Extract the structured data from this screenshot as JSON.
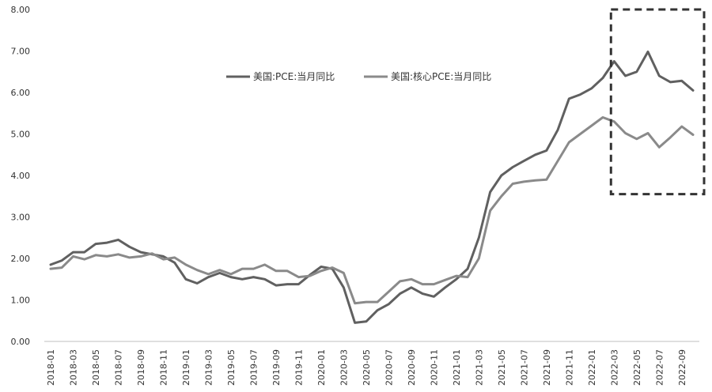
{
  "chart_data": {
    "type": "line",
    "x": [
      "2018-01",
      "2018-02",
      "2018-03",
      "2018-04",
      "2018-05",
      "2018-06",
      "2018-07",
      "2018-08",
      "2018-09",
      "2018-10",
      "2018-11",
      "2018-12",
      "2019-01",
      "2019-02",
      "2019-03",
      "2019-04",
      "2019-05",
      "2019-06",
      "2019-07",
      "2019-08",
      "2019-09",
      "2019-10",
      "2019-11",
      "2019-12",
      "2020-01",
      "2020-02",
      "2020-03",
      "2020-04",
      "2020-05",
      "2020-06",
      "2020-07",
      "2020-08",
      "2020-09",
      "2020-10",
      "2020-11",
      "2020-12",
      "2021-01",
      "2021-02",
      "2021-03",
      "2021-04",
      "2021-05",
      "2021-06",
      "2021-07",
      "2021-08",
      "2021-09",
      "2021-10",
      "2021-11",
      "2021-12",
      "2022-01",
      "2022-02",
      "2022-03",
      "2022-04",
      "2022-05",
      "2022-06",
      "2022-07",
      "2022-08",
      "2022-09",
      "2022-10"
    ],
    "x_tick_labels": [
      "2018-01",
      "2018-03",
      "2018-05",
      "2018-07",
      "2018-09",
      "2018-11",
      "2019-01",
      "2019-03",
      "2019-05",
      "2019-07",
      "2019-09",
      "2019-11",
      "2020-01",
      "2020-03",
      "2020-05",
      "2020-07",
      "2020-09",
      "2020-11",
      "2021-01",
      "2021-03",
      "2021-05",
      "2021-07",
      "2021-09",
      "2021-11",
      "2022-01",
      "2022-03",
      "2022-05",
      "2022-07",
      "2022-09"
    ],
    "y_tick_labels": [
      "0.00",
      "1.00",
      "2.00",
      "3.00",
      "4.00",
      "5.00",
      "6.00",
      "7.00",
      "8.00"
    ],
    "ylim": [
      0,
      8
    ],
    "grid": false,
    "legend_position": "top-center",
    "series": [
      {
        "name": "美国:PCE:当月同比",
        "color": "#606060",
        "values": [
          1.85,
          1.95,
          2.15,
          2.15,
          2.35,
          2.38,
          2.45,
          2.28,
          2.15,
          2.1,
          2.05,
          1.9,
          1.5,
          1.4,
          1.55,
          1.65,
          1.55,
          1.5,
          1.55,
          1.5,
          1.35,
          1.38,
          1.38,
          1.6,
          1.8,
          1.75,
          1.3,
          0.45,
          0.48,
          0.75,
          0.9,
          1.15,
          1.3,
          1.15,
          1.08,
          1.3,
          1.5,
          1.75,
          2.5,
          3.6,
          4.0,
          4.2,
          4.35,
          4.5,
          4.6,
          5.1,
          5.85,
          5.95,
          6.1,
          6.35,
          6.75,
          6.4,
          6.5,
          6.98,
          6.4,
          6.25,
          6.28,
          6.05
        ]
      },
      {
        "name": "美国:核心PCE:当月同比",
        "color": "#8a8a8a",
        "values": [
          1.75,
          1.78,
          2.05,
          1.98,
          2.08,
          2.05,
          2.1,
          2.02,
          2.05,
          2.12,
          1.98,
          2.02,
          1.85,
          1.72,
          1.62,
          1.72,
          1.62,
          1.75,
          1.75,
          1.85,
          1.7,
          1.7,
          1.55,
          1.58,
          1.7,
          1.78,
          1.65,
          0.92,
          0.95,
          0.95,
          1.2,
          1.45,
          1.5,
          1.38,
          1.38,
          1.48,
          1.58,
          1.55,
          2.0,
          3.15,
          3.5,
          3.8,
          3.85,
          3.88,
          3.9,
          4.35,
          4.8,
          5.0,
          5.2,
          5.4,
          5.3,
          5.02,
          4.88,
          5.02,
          4.68,
          4.92,
          5.18,
          4.98
        ]
      }
    ],
    "annotation": {
      "type": "dashed-box",
      "color": "#333333",
      "x_from": "2022-03",
      "x_to": "2022-10",
      "y_from": 3.55,
      "y_to": 8.0
    }
  }
}
